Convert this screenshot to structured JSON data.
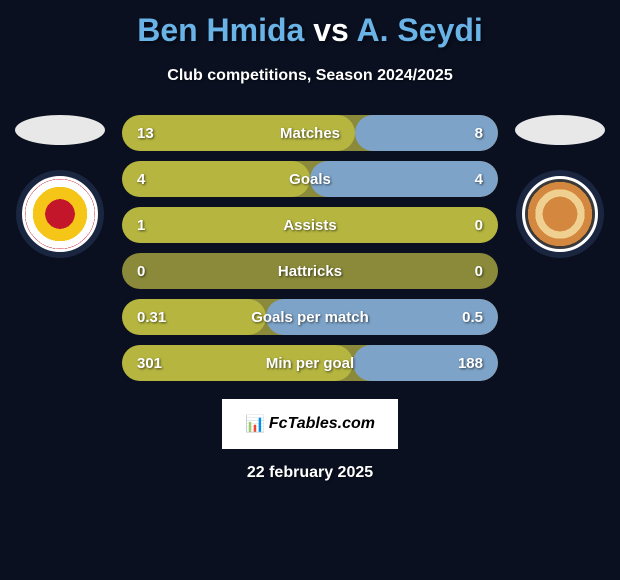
{
  "title": {
    "player1_name": "Ben Hmida",
    "vs_text": "vs",
    "player2_name": "A. Seydi",
    "player1_color": "#69b3e7",
    "player2_color": "#69b3e7"
  },
  "subtitle": "Club competitions, Season 2024/2025",
  "player1_photo_bg": "#e8e8e8",
  "player2_photo_bg": "#e8e8e8",
  "stats": [
    {
      "label": "Matches",
      "left_val": "13",
      "right_val": "8",
      "left_num": 13,
      "right_num": 8,
      "left_color": "#b5b540",
      "right_color": "#7da3c8"
    },
    {
      "label": "Goals",
      "left_val": "4",
      "right_val": "4",
      "left_num": 4,
      "right_num": 4,
      "left_color": "#b5b540",
      "right_color": "#7da3c8"
    },
    {
      "label": "Assists",
      "left_val": "1",
      "right_val": "0",
      "left_num": 1,
      "right_num": 0,
      "left_color": "#b5b540",
      "right_color": "#7da3c8"
    },
    {
      "label": "Hattricks",
      "left_val": "0",
      "right_val": "0",
      "left_num": 0,
      "right_num": 0,
      "left_color": "#b5b540",
      "right_color": "#7da3c8"
    },
    {
      "label": "Goals per match",
      "left_val": "0.31",
      "right_val": "0.5",
      "left_num": 0.31,
      "right_num": 0.5,
      "left_color": "#b5b540",
      "right_color": "#7da3c8"
    },
    {
      "label": "Min per goal",
      "left_val": "301",
      "right_val": "188",
      "left_num": 301,
      "right_num": 188,
      "left_color": "#b5b540",
      "right_color": "#7da3c8"
    }
  ],
  "row_widths": {
    "track_bg": "#8a8a3a",
    "half_percent": 50
  },
  "branding": {
    "icon": "📊",
    "text": "FcTables.com"
  },
  "date": "22 february 2025"
}
